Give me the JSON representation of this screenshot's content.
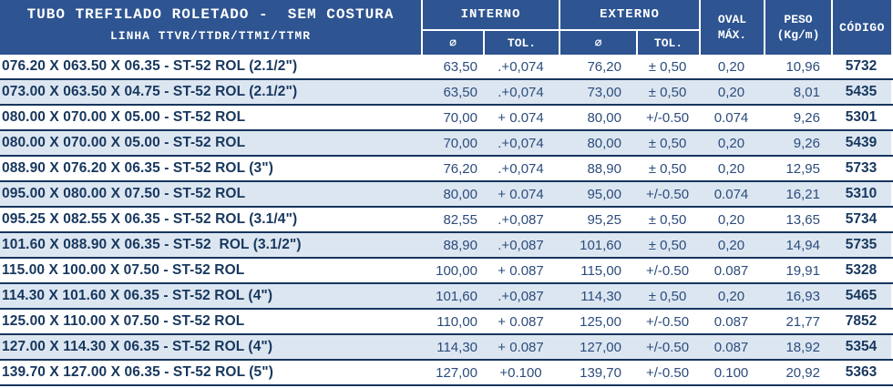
{
  "header": {
    "title": "TUBO TREFILADO ROLETADO -  SEM COSTURA",
    "subtitle": "LINHA TTVR/TTDR/TTMI/TTMR",
    "interno_label": "INTERNO",
    "externo_label": "EXTERNO",
    "diameter_symbol": "∅",
    "tol_label": "TOL.",
    "oval_line1": "OVAL",
    "oval_line2": "MÁX.",
    "peso_line1": "PESO",
    "peso_line2": "(Kg/m)",
    "codigo_label": "CÓDIGO"
  },
  "colors": {
    "header_bg": "#2E5491",
    "header_text": "#FFFFFF",
    "row_stripe": "#DCE6F1",
    "row_white": "#FFFFFF",
    "separator": "#17365D",
    "text_primary": "#17375E",
    "text_number": "#2C4C7C"
  },
  "rows": [
    {
      "desc": "076.20 X 063.50 X 06.35 - ST-52 ROL (2.1/2\")",
      "interno_d": "63,50",
      "interno_tol": ".+0,074",
      "externo_d": "76,20",
      "externo_tol": "± 0,50",
      "oval_max": "0,20",
      "peso": "10,96",
      "codigo": "5732"
    },
    {
      "desc": "073.00 X 063.50 X 04.75 - ST-52 ROL (2.1/2\")",
      "interno_d": "63,50",
      "interno_tol": ".+0,074",
      "externo_d": "73,00",
      "externo_tol": "± 0,50",
      "oval_max": "0,20",
      "peso": "8,01",
      "codigo": "5435"
    },
    {
      "desc": "080.00 X 070.00 X 05.00 - ST-52 ROL",
      "interno_d": "70,00",
      "interno_tol": "+ 0.074",
      "externo_d": "80,00",
      "externo_tol": "+/-0.50",
      "oval_max": "0.074",
      "peso": "9,26",
      "codigo": "5301"
    },
    {
      "desc": "080.00 X 070.00 X 05.00 - ST-52 ROL",
      "interno_d": "70,00",
      "interno_tol": ".+0,074",
      "externo_d": "80,00",
      "externo_tol": "± 0,50",
      "oval_max": "0,20",
      "peso": "9,26",
      "codigo": "5439"
    },
    {
      "desc": "088.90 X 076.20 X 06.35 - ST-52 ROL (3\")",
      "interno_d": "76,20",
      "interno_tol": ".+0,074",
      "externo_d": "88,90",
      "externo_tol": "± 0,50",
      "oval_max": "0,20",
      "peso": "12,95",
      "codigo": "5733"
    },
    {
      "desc": "095.00 X 080.00 X 07.50 - ST-52 ROL",
      "interno_d": "80,00",
      "interno_tol": "+ 0.074",
      "externo_d": "95,00",
      "externo_tol": "+/-0.50",
      "oval_max": "0.074",
      "peso": "16,21",
      "codigo": "5310"
    },
    {
      "desc": "095.25 X 082.55 X 06.35 - ST-52 ROL (3.1/4\")",
      "interno_d": "82,55",
      "interno_tol": ".+0,087",
      "externo_d": "95,25",
      "externo_tol": "± 0,50",
      "oval_max": "0,20",
      "peso": "13,65",
      "codigo": "5734"
    },
    {
      "desc": "101.60 X 088.90 X 06.35 - ST-52  ROL (3.1/2\")",
      "interno_d": "88,90",
      "interno_tol": ".+0,087",
      "externo_d": "101,60",
      "externo_tol": "± 0,50",
      "oval_max": "0,20",
      "peso": "14,94",
      "codigo": "5735"
    },
    {
      "desc": "115.00 X 100.00 X 07.50 - ST-52 ROL",
      "interno_d": "100,00",
      "interno_tol": "+ 0.087",
      "externo_d": "115,00",
      "externo_tol": "+/-0.50",
      "oval_max": "0.087",
      "peso": "19,91",
      "codigo": "5328"
    },
    {
      "desc": "114.30 X 101.60 X 06.35 - ST-52 ROL (4\")",
      "interno_d": "101,60",
      "interno_tol": ".+0,087",
      "externo_d": "114,30",
      "externo_tol": "± 0,50",
      "oval_max": "0,20",
      "peso": "16,93",
      "codigo": "5465"
    },
    {
      "desc": "125.00 X 110.00 X 07.50 - ST-52 ROL",
      "interno_d": "110,00",
      "interno_tol": "+ 0.087",
      "externo_d": "125,00",
      "externo_tol": "+/-0.50",
      "oval_max": "0.087",
      "peso": "21,77",
      "codigo": "7852"
    },
    {
      "desc": "127.00 X 114.30 X 06.35 - ST-52 ROL (4\")",
      "interno_d": "114,30",
      "interno_tol": "+ 0.087",
      "externo_d": "127,00",
      "externo_tol": "+/-0.50",
      "oval_max": "0.087",
      "peso": "18,92",
      "codigo": "5354"
    },
    {
      "desc": "139.70 X 127.00 X 06.35 - ST-52 ROL (5\")",
      "interno_d": "127,00",
      "interno_tol": "+0.100",
      "externo_d": "139,70",
      "externo_tol": "+/-0.50",
      "oval_max": "0.100",
      "peso": "20,92",
      "codigo": "5363"
    }
  ]
}
